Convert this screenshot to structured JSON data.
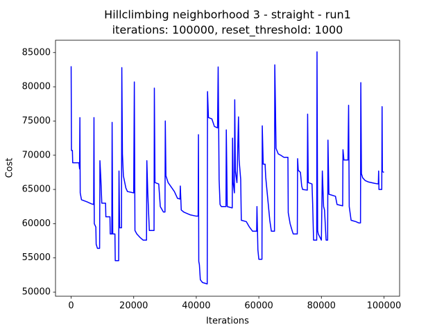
{
  "chart_data": {
    "type": "line",
    "title": "Hillclimbing neighborhood 3 - straight - run1",
    "subtitle": "iterations: 100000, reset_threshold: 1000",
    "x_label": "Iterations",
    "y_label": "Cost",
    "color": "#0000ff",
    "x": [
      0,
      100,
      400,
      500,
      2500,
      2700,
      2800,
      2900,
      3300,
      5000,
      6500,
      7200,
      7300,
      7400,
      7900,
      8000,
      8400,
      9100,
      9200,
      9500,
      9800,
      11000,
      11100,
      12400,
      12500,
      13000,
      13100,
      13300,
      14000,
      14100,
      15200,
      15300,
      15500,
      16100,
      16200,
      16400,
      16700,
      17500,
      18000,
      20000,
      20200,
      20400,
      21000,
      22000,
      23000,
      24100,
      24200,
      24500,
      25000,
      26500,
      26600,
      26800,
      28000,
      28500,
      29500,
      30000,
      30100,
      30300,
      31000,
      33000,
      34000,
      34800,
      34900,
      35200,
      36000,
      38000,
      40000,
      40600,
      40700,
      40800,
      41000,
      41300,
      42000,
      43500,
      43600,
      43900,
      45000,
      45800,
      46800,
      47000,
      47300,
      47600,
      48000,
      49500,
      49600,
      49900,
      51500,
      51600,
      51800,
      52200,
      52300,
      52500,
      53000,
      53500,
      53700,
      54200,
      54400,
      56000,
      57000,
      58000,
      59300,
      59400,
      59700,
      60000,
      61000,
      61100,
      61400,
      62000,
      62200,
      63500,
      64000,
      65000,
      65100,
      65300,
      65500,
      66200,
      67000,
      68000,
      69300,
      69400,
      70000,
      70700,
      71000,
      72300,
      72400,
      72600,
      73300,
      73700,
      74000,
      75500,
      75600,
      75800,
      77000,
      77200,
      77500,
      78500,
      78600,
      78800,
      79000,
      80000,
      80300,
      80700,
      81000,
      81500,
      82000,
      82100,
      82400,
      84500,
      85000,
      86800,
      86900,
      87200,
      88500,
      88700,
      88900,
      89500,
      91000,
      92000,
      92500,
      92600,
      92800,
      93200,
      94000,
      95000,
      97000,
      98200,
      98300,
      98400,
      99300,
      99400,
      99500,
      100000
    ],
    "values": [
      83000,
      70700,
      70700,
      68900,
      68900,
      68000,
      75500,
      64500,
      63500,
      63200,
      62900,
      62800,
      75500,
      60000,
      59500,
      57000,
      56400,
      56400,
      69200,
      66500,
      63000,
      63000,
      61000,
      61000,
      58500,
      58500,
      74800,
      58500,
      58500,
      54600,
      54600,
      67700,
      59400,
      59400,
      82800,
      70200,
      67000,
      65200,
      64700,
      64500,
      80700,
      59000,
      58500,
      58000,
      57600,
      57600,
      69200,
      64500,
      59000,
      59000,
      79800,
      66000,
      65800,
      62500,
      61700,
      61700,
      75000,
      67000,
      66000,
      64700,
      63700,
      63600,
      65500,
      62000,
      61700,
      61300,
      61100,
      61100,
      73000,
      54500,
      54000,
      51800,
      51400,
      51200,
      79300,
      75500,
      75300,
      74200,
      74000,
      82900,
      66500,
      62800,
      62500,
      62500,
      73700,
      62500,
      62300,
      72500,
      66000,
      64500,
      78100,
      67700,
      66000,
      75600,
      69300,
      66500,
      60500,
      60300,
      59500,
      58900,
      58900,
      62500,
      56200,
      54800,
      54800,
      74300,
      68700,
      68700,
      66800,
      60500,
      58900,
      58900,
      83200,
      77500,
      71000,
      70200,
      70000,
      69700,
      69700,
      61600,
      60000,
      58900,
      58500,
      58500,
      69500,
      67800,
      67500,
      65500,
      65000,
      64900,
      76000,
      66000,
      65800,
      63000,
      57600,
      57600,
      85100,
      59000,
      58500,
      57600,
      67700,
      62500,
      62000,
      57600,
      57600,
      72200,
      64300,
      64000,
      62800,
      62600,
      70800,
      69300,
      69300,
      77300,
      62500,
      60500,
      60300,
      60100,
      60100,
      80600,
      67300,
      66700,
      66300,
      66100,
      65900,
      65800,
      67700,
      65000,
      65000,
      77100,
      67600,
      67500
    ],
    "xlim": [
      -5000,
      105000
    ],
    "ylim": [
      49400,
      86800
    ],
    "xticks": [
      0,
      20000,
      40000,
      60000,
      80000,
      100000
    ],
    "yticks": [
      50000,
      55000,
      60000,
      65000,
      70000,
      75000,
      80000,
      85000
    ]
  }
}
